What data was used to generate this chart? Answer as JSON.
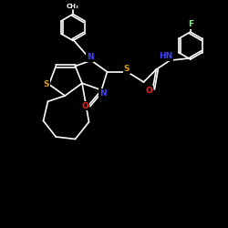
{
  "background_color": "#000000",
  "bond_color": "#ffffff",
  "atom_colors": {
    "S": "#d4a017",
    "N": "#4040ff",
    "O": "#ff2020",
    "F": "#90ee90",
    "H": "#ffffff",
    "C": "#ffffff"
  },
  "lw": 1.2
}
